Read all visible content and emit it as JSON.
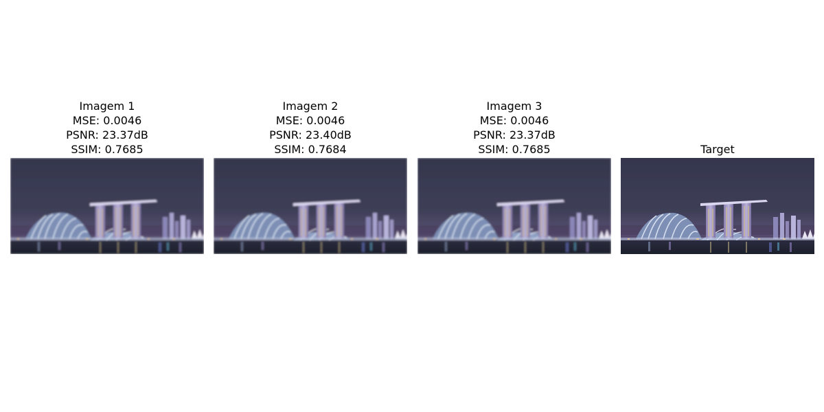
{
  "panels": [
    {
      "title": "Imagem 1",
      "mse": "MSE: 0.0046",
      "psnr": "PSNR: 23.37dB",
      "ssim": "SSIM: 0.7685",
      "image": "singapore-skyline-night-blurred"
    },
    {
      "title": "Imagem 2",
      "mse": "MSE: 0.0046",
      "psnr": "PSNR: 23.40dB",
      "ssim": "SSIM: 0.7684",
      "image": "singapore-skyline-night-blurred"
    },
    {
      "title": "Imagem 3",
      "mse": "MSE: 0.0046",
      "psnr": "PSNR: 23.37dB",
      "ssim": "SSIM: 0.7685",
      "image": "singapore-skyline-night-blurred"
    },
    {
      "title": "Target",
      "image": "singapore-skyline-night-sharp"
    }
  ],
  "colors": {
    "sky": "#3a3c52",
    "water": "#1e2230",
    "lights_blue": "#9fb4e0",
    "lights_purple": "#a58ed0",
    "lights_warm": "#e6c890"
  }
}
